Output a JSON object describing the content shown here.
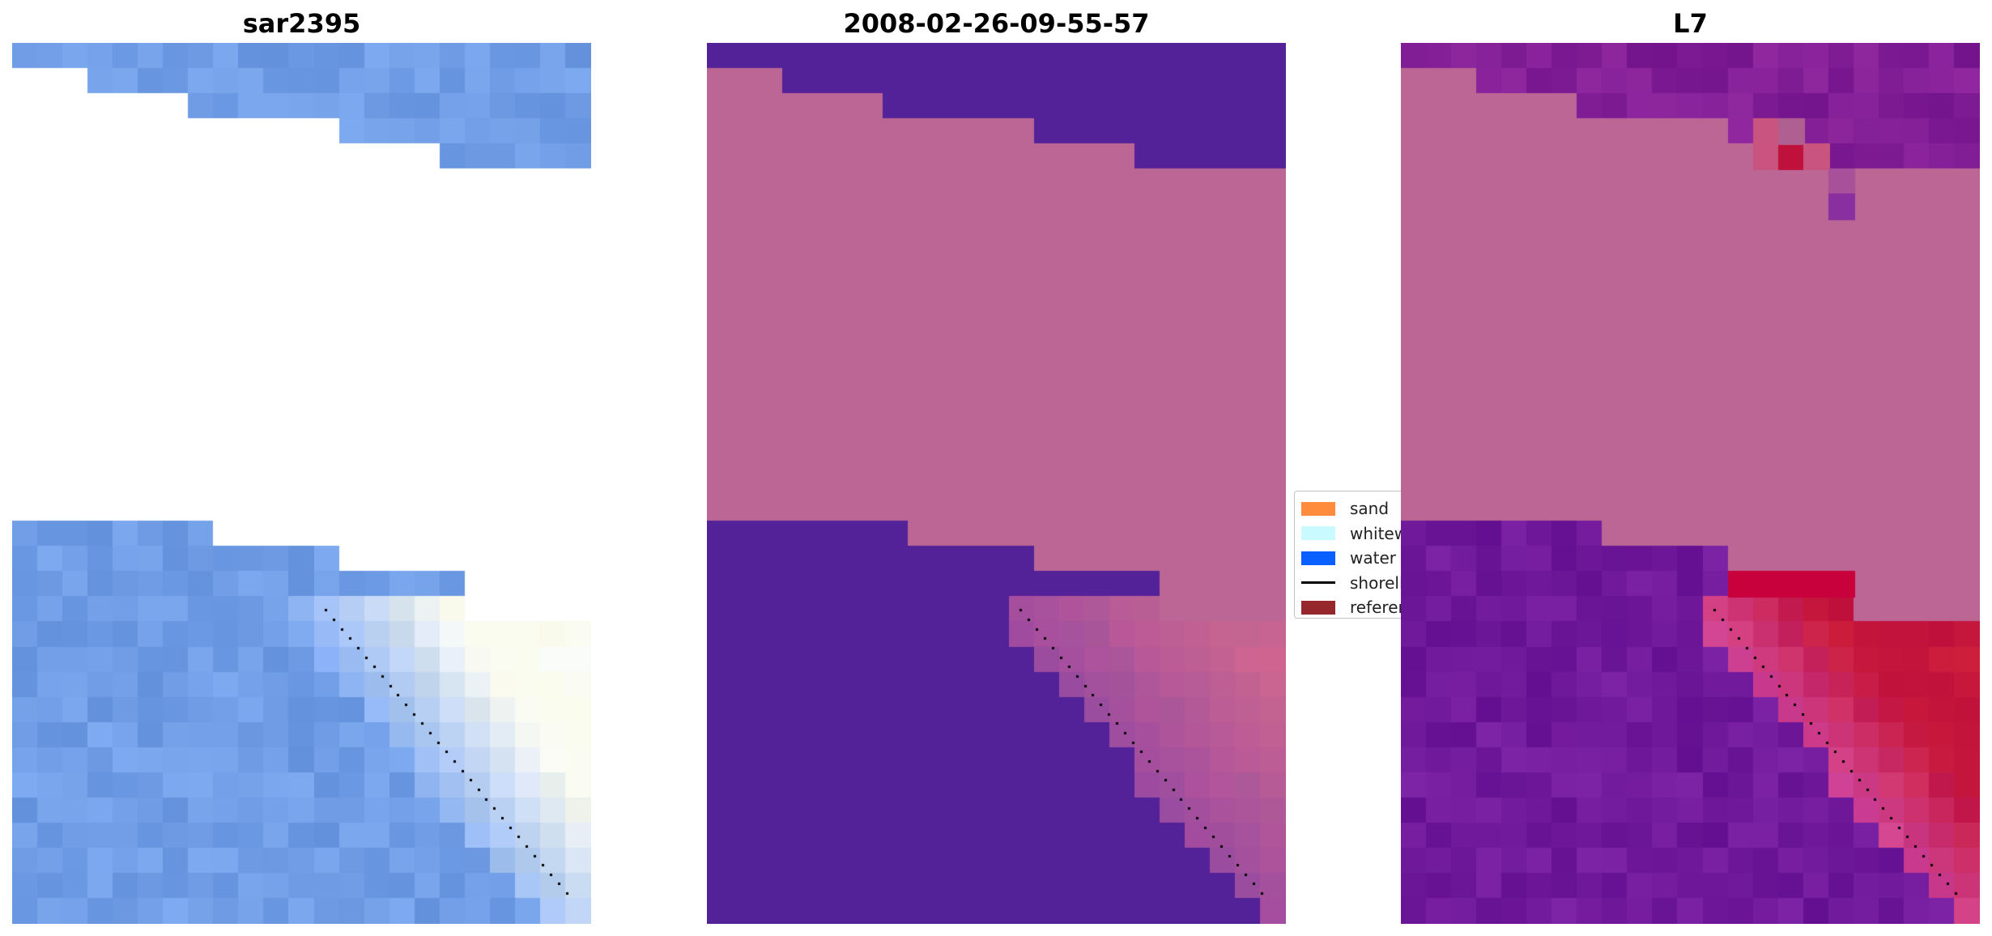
{
  "panels": [
    {
      "title": "sar2395"
    },
    {
      "title": "2008-02-26-09-55-57"
    },
    {
      "title": "L7"
    }
  ],
  "legend": {
    "items": [
      {
        "label": "sand",
        "color": "#ff8c3c",
        "kind": "patch"
      },
      {
        "label": "whitewater",
        "color": "#c8faff",
        "kind": "patch"
      },
      {
        "label": "water",
        "color": "#0a5fff",
        "kind": "patch"
      },
      {
        "label": "shoreline",
        "color": "#000000",
        "kind": "line"
      },
      {
        "label": "reference",
        "color": "#96282d",
        "kind": "patch"
      }
    ]
  },
  "colors": {
    "land_magenta": "#bb6694",
    "water_purple": "#532198",
    "sand_red": "#c8103c",
    "nodata": "#ffffff"
  }
}
